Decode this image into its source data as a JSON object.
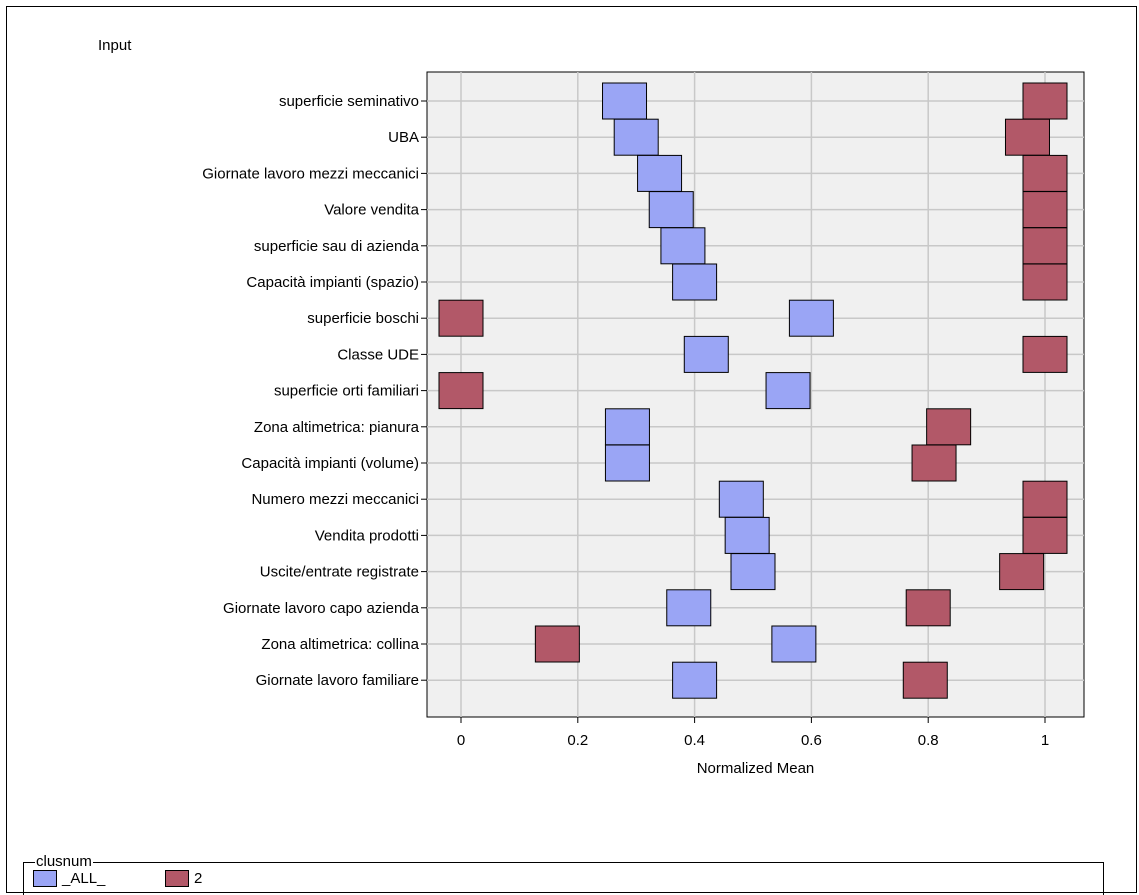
{
  "chart_data": {
    "type": "scatter",
    "subtype": "normalized-mean-plot",
    "ytitle": "Input",
    "xlabel": "Normalized Mean",
    "xlim": [
      -0.05,
      1.07
    ],
    "xticks": [
      0,
      0.2,
      0.4,
      0.6,
      0.8,
      1
    ],
    "xtick_labels": [
      "0",
      "0.2",
      "0.4",
      "0.6",
      "0.8",
      "1"
    ],
    "grid": true,
    "categories": [
      "superficie seminativo",
      "UBA",
      "Giornate lavoro mezzi meccanici",
      "Valore vendita",
      "superficie sau di azienda",
      "Capacità impianti (spazio)",
      "superficie boschi",
      "Classe UDE",
      "superficie orti familiari",
      "Zona altimetrica: pianura",
      "Capacità impianti (volume)",
      "Numero mezzi meccanici",
      "Vendita prodotti",
      "Uscite/entrate registrate",
      "Giornate lavoro capo azienda",
      "Zona altimetrica: collina",
      "Giornate lavoro familiare"
    ],
    "series": [
      {
        "name": "_ALL_",
        "color": "#9aa5f5",
        "values": [
          0.28,
          0.3,
          0.34,
          0.36,
          0.38,
          0.4,
          0.6,
          0.42,
          0.56,
          0.285,
          0.285,
          0.48,
          0.49,
          0.5,
          0.39,
          0.57,
          0.4
        ]
      },
      {
        "name": "2",
        "color": "#b25868",
        "values": [
          1.0,
          0.97,
          1.0,
          1.0,
          1.0,
          1.0,
          0.0,
          1.0,
          0.0,
          0.835,
          0.81,
          1.0,
          1.0,
          0.96,
          0.8,
          0.165,
          0.795
        ]
      }
    ],
    "legend": {
      "title": "clusnum",
      "position": "bottom-left"
    }
  }
}
